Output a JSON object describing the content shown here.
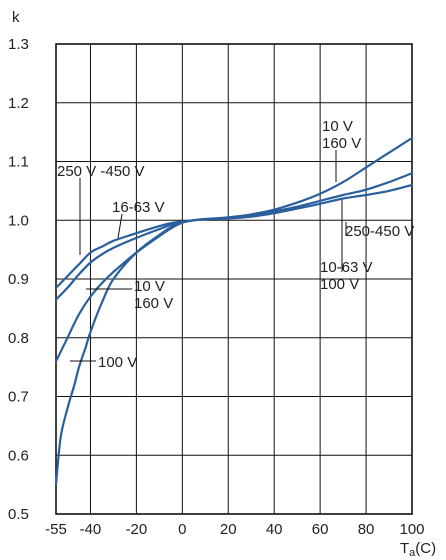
{
  "chart_data": {
    "type": "line",
    "ylabel": "k",
    "xlabel_main": "T",
    "xlabel_sub": "a",
    "xlabel_unit": "(C)",
    "xlim": [
      -55,
      100
    ],
    "ylim": [
      0.5,
      1.3
    ],
    "x_ticks": [
      "-55",
      "-40",
      "-20",
      "0",
      "20",
      "40",
      "60",
      "80",
      "100"
    ],
    "x_tick_values": [
      -55,
      -40,
      -20,
      0,
      20,
      40,
      60,
      80,
      100
    ],
    "y_ticks": [
      "0.5",
      "0.6",
      "0.7",
      "0.8",
      "0.9",
      "1.0",
      "1.1",
      "1.2",
      "1.3"
    ],
    "y_tick_values": [
      0.5,
      0.6,
      0.7,
      0.8,
      0.9,
      1.0,
      1.1,
      1.2,
      1.3
    ],
    "x_gridlines": [
      -40,
      -20,
      0,
      20,
      40,
      60,
      80
    ],
    "y_gridlines": [
      0.6,
      0.7,
      0.8,
      0.9,
      1.0,
      1.1,
      1.2
    ],
    "grid": true,
    "line_color": "#2a5f9e",
    "series": [
      {
        "x": [
          -55,
          -50,
          -45,
          -40,
          -35,
          -30,
          -20,
          -10,
          -5,
          0,
          5,
          10,
          20,
          30,
          40,
          50,
          60,
          70,
          80,
          90,
          100
        ],
        "y": [
          0.885,
          0.905,
          0.925,
          0.945,
          0.955,
          0.965,
          0.978,
          0.99,
          0.995,
          0.998,
          1.0,
          1.002,
          1.003,
          1.006,
          1.012,
          1.02,
          1.028,
          1.037,
          1.043,
          1.05,
          1.06
        ]
      },
      {
        "x": [
          -55,
          -50,
          -45,
          -40,
          -35,
          -30,
          -20,
          -10,
          -5,
          0,
          5,
          10,
          20,
          30,
          40,
          50,
          60,
          70,
          80,
          90,
          100
        ],
        "y": [
          0.865,
          0.885,
          0.908,
          0.928,
          0.942,
          0.953,
          0.97,
          0.985,
          0.992,
          0.997,
          1.0,
          1.002,
          1.004,
          1.008,
          1.015,
          1.023,
          1.033,
          1.043,
          1.052,
          1.065,
          1.08
        ]
      },
      {
        "x": [
          -55,
          -50,
          -45,
          -40,
          -35,
          -30,
          -20,
          -10,
          -5,
          0,
          5,
          10,
          20,
          30,
          40,
          50,
          60,
          70,
          80,
          90,
          100
        ],
        "y": [
          0.76,
          0.8,
          0.84,
          0.87,
          0.893,
          0.912,
          0.945,
          0.973,
          0.986,
          0.996,
          1.0,
          1.002,
          1.005,
          1.01,
          1.018,
          1.03,
          1.045,
          1.065,
          1.09,
          1.115,
          1.14
        ]
      },
      {
        "x": [
          -55,
          -53,
          -50,
          -47,
          -45,
          -42,
          -40,
          -35,
          -30,
          -20,
          -10,
          -5,
          0,
          5,
          10
        ],
        "y": [
          0.55,
          0.63,
          0.68,
          0.72,
          0.75,
          0.785,
          0.81,
          0.86,
          0.9,
          0.945,
          0.975,
          0.988,
          0.996,
          1.0,
          1.002
        ]
      }
    ],
    "annotations": {
      "a_250_450": "250 V -450 V",
      "a_16_63": "16-63 V",
      "a_10v_left": "10 V",
      "a_160v_left": "160 V",
      "a_100v_left": "100 V",
      "a_10v_right": "10 V",
      "a_160v_right": "160 V",
      "a_250_450_right": "250-450 V",
      "a_10_63_right": "10-63 V",
      "a_100v_right": "100 V"
    }
  }
}
